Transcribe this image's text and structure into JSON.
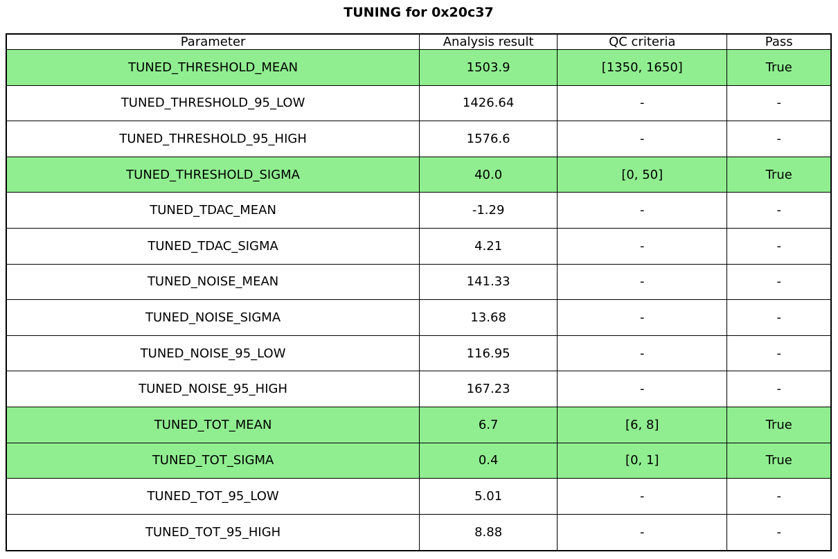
{
  "colors": {
    "background": "#FFFFFF",
    "border": "#000000",
    "text": "#000000",
    "highlight": "#90EE90"
  },
  "chart_data": {
    "type": "table",
    "title": "TUNING for 0x20c37",
    "columns": [
      "Parameter",
      "Analysis result",
      "QC criteria",
      "Pass"
    ],
    "column_keys": [
      "parameter",
      "analysis_result",
      "qc_criteria",
      "pass"
    ],
    "highlighted_rows": [
      0,
      3,
      10,
      11
    ],
    "highlight_color": "#90EE90",
    "rows": [
      {
        "parameter": "TUNED_THRESHOLD_MEAN",
        "analysis_result": "1503.9",
        "qc_criteria": "[1350, 1650]",
        "pass": "True",
        "highlighted": true
      },
      {
        "parameter": "TUNED_THRESHOLD_95_LOW",
        "analysis_result": "1426.64",
        "qc_criteria": "-",
        "pass": "-",
        "highlighted": false
      },
      {
        "parameter": "TUNED_THRESHOLD_95_HIGH",
        "analysis_result": "1576.6",
        "qc_criteria": "-",
        "pass": "-",
        "highlighted": false
      },
      {
        "parameter": "TUNED_THRESHOLD_SIGMA",
        "analysis_result": "40.0",
        "qc_criteria": "[0, 50]",
        "pass": "True",
        "highlighted": true
      },
      {
        "parameter": "TUNED_TDAC_MEAN",
        "analysis_result": "-1.29",
        "qc_criteria": "-",
        "pass": "-",
        "highlighted": false
      },
      {
        "parameter": "TUNED_TDAC_SIGMA",
        "analysis_result": "4.21",
        "qc_criteria": "-",
        "pass": "-",
        "highlighted": false
      },
      {
        "parameter": "TUNED_NOISE_MEAN",
        "analysis_result": "141.33",
        "qc_criteria": "-",
        "pass": "-",
        "highlighted": false
      },
      {
        "parameter": "TUNED_NOISE_SIGMA",
        "analysis_result": "13.68",
        "qc_criteria": "-",
        "pass": "-",
        "highlighted": false
      },
      {
        "parameter": "TUNED_NOISE_95_LOW",
        "analysis_result": "116.95",
        "qc_criteria": "-",
        "pass": "-",
        "highlighted": false
      },
      {
        "parameter": "TUNED_NOISE_95_HIGH",
        "analysis_result": "167.23",
        "qc_criteria": "-",
        "pass": "-",
        "highlighted": false
      },
      {
        "parameter": "TUNED_TOT_MEAN",
        "analysis_result": "6.7",
        "qc_criteria": "[6, 8]",
        "pass": "True",
        "highlighted": true
      },
      {
        "parameter": "TUNED_TOT_SIGMA",
        "analysis_result": "0.4",
        "qc_criteria": "[0, 1]",
        "pass": "True",
        "highlighted": true
      },
      {
        "parameter": "TUNED_TOT_95_LOW",
        "analysis_result": "5.01",
        "qc_criteria": "-",
        "pass": "-",
        "highlighted": false
      },
      {
        "parameter": "TUNED_TOT_95_HIGH",
        "analysis_result": "8.88",
        "qc_criteria": "-",
        "pass": "-",
        "highlighted": false
      }
    ]
  }
}
